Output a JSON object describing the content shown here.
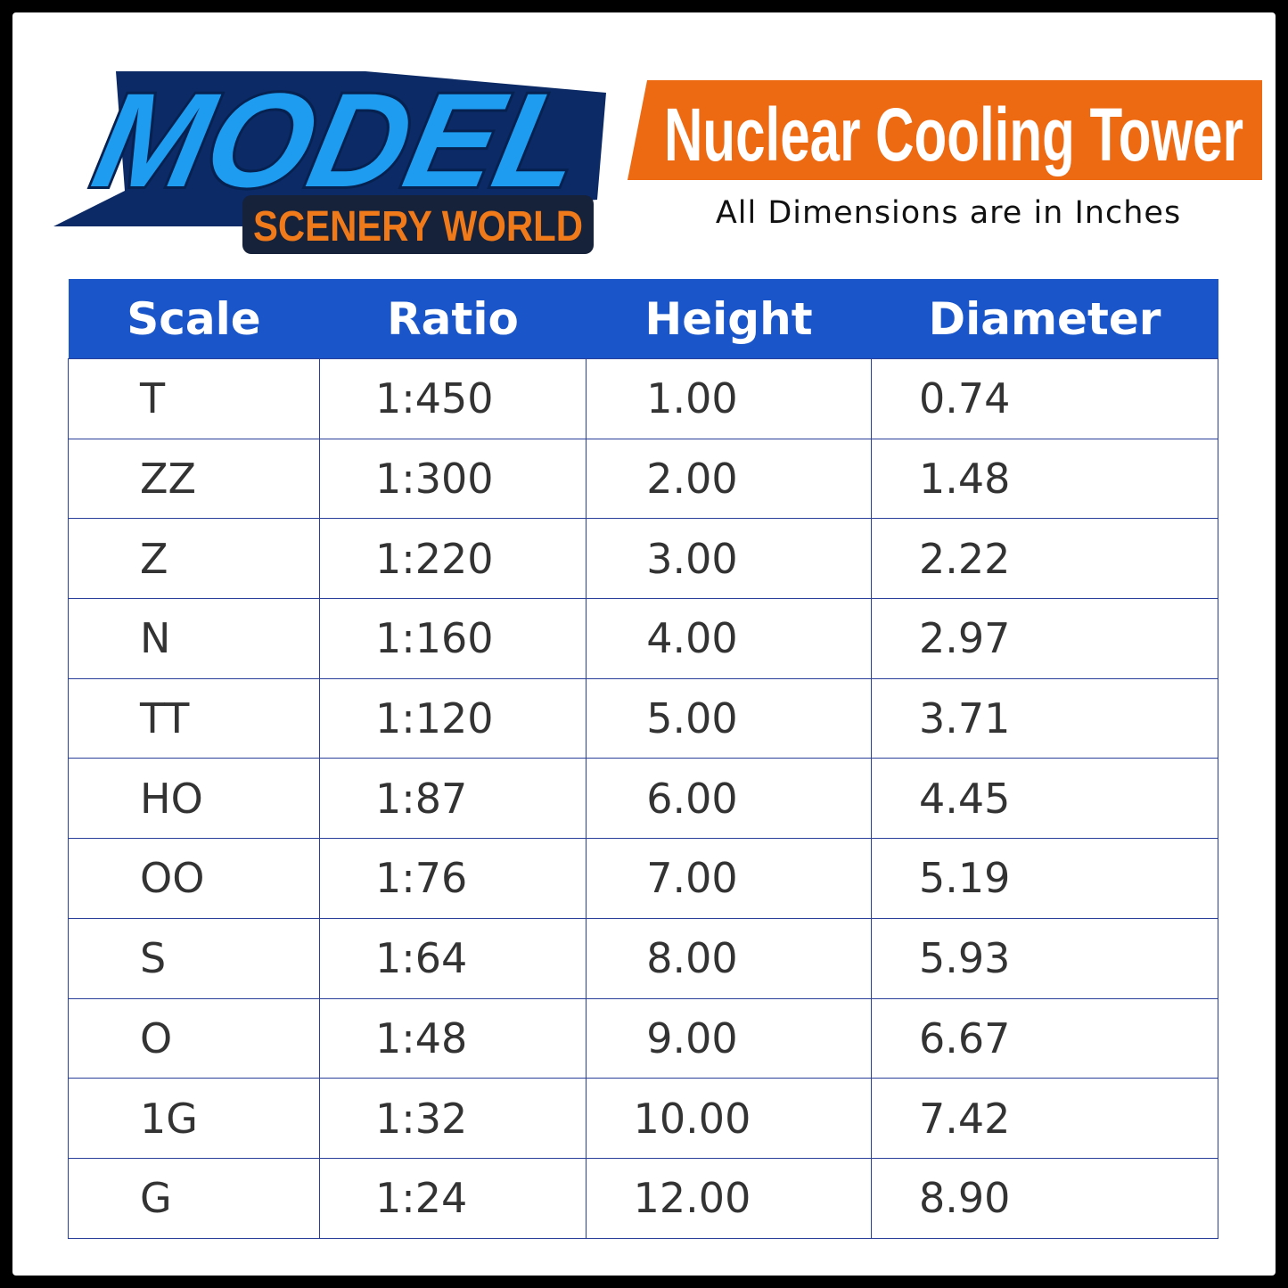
{
  "logo": {
    "title": "MODEL",
    "subtitle": "SCENERY WORLD"
  },
  "header": {
    "title": "Nuclear Cooling Tower",
    "subtitle": "All Dimensions are in Inches"
  },
  "table": {
    "columns": [
      "Scale",
      "Ratio",
      "Height",
      "Diameter"
    ],
    "rows": [
      [
        "T",
        "1:450",
        "1.00",
        "0.74"
      ],
      [
        "ZZ",
        "1:300",
        "2.00",
        "1.48"
      ],
      [
        "Z",
        "1:220",
        "3.00",
        "2.22"
      ],
      [
        "N",
        "1:160",
        "4.00",
        "2.97"
      ],
      [
        "TT",
        "1:120",
        "5.00",
        "3.71"
      ],
      [
        "HO",
        "1:87",
        "6.00",
        "4.45"
      ],
      [
        "OO",
        "1:76",
        "7.00",
        "5.19"
      ],
      [
        "S",
        "1:64",
        "8.00",
        "5.93"
      ],
      [
        "O",
        "1:48",
        "9.00",
        "6.67"
      ],
      [
        "1G",
        "1:32",
        "10.00",
        "7.42"
      ],
      [
        "G",
        "1:24",
        "12.00",
        "8.90"
      ]
    ]
  }
}
